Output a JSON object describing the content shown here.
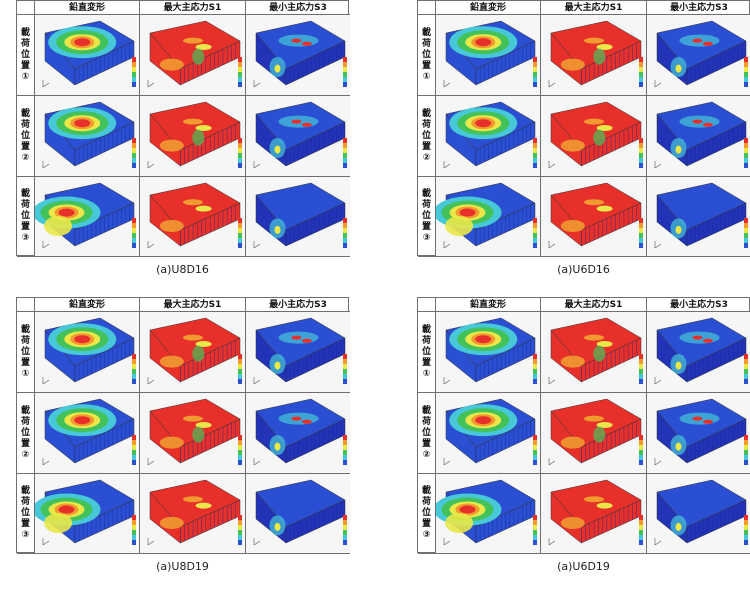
{
  "headers": [
    "鉛直変形",
    "最大主応力S1",
    "最小主応力S3"
  ],
  "row_labels": [
    [
      "載",
      "荷",
      "位",
      "置",
      "①"
    ],
    [
      "載",
      "荷",
      "位",
      "置",
      "②"
    ],
    [
      "載",
      "荷",
      "位",
      "置",
      "③"
    ]
  ],
  "panels": [
    {
      "caption": "(a)U8D16"
    },
    {
      "caption": "(a)U6D16"
    },
    {
      "caption": "(a)U8D19"
    },
    {
      "caption": "(a)U6D19"
    }
  ],
  "colors": {
    "red": "#e8302a",
    "orange": "#f09a30",
    "yellow": "#e9e848",
    "green": "#44c25a",
    "cyan": "#46c8d8",
    "blue": "#2b4fd2",
    "deepblue": "#2233b8"
  }
}
